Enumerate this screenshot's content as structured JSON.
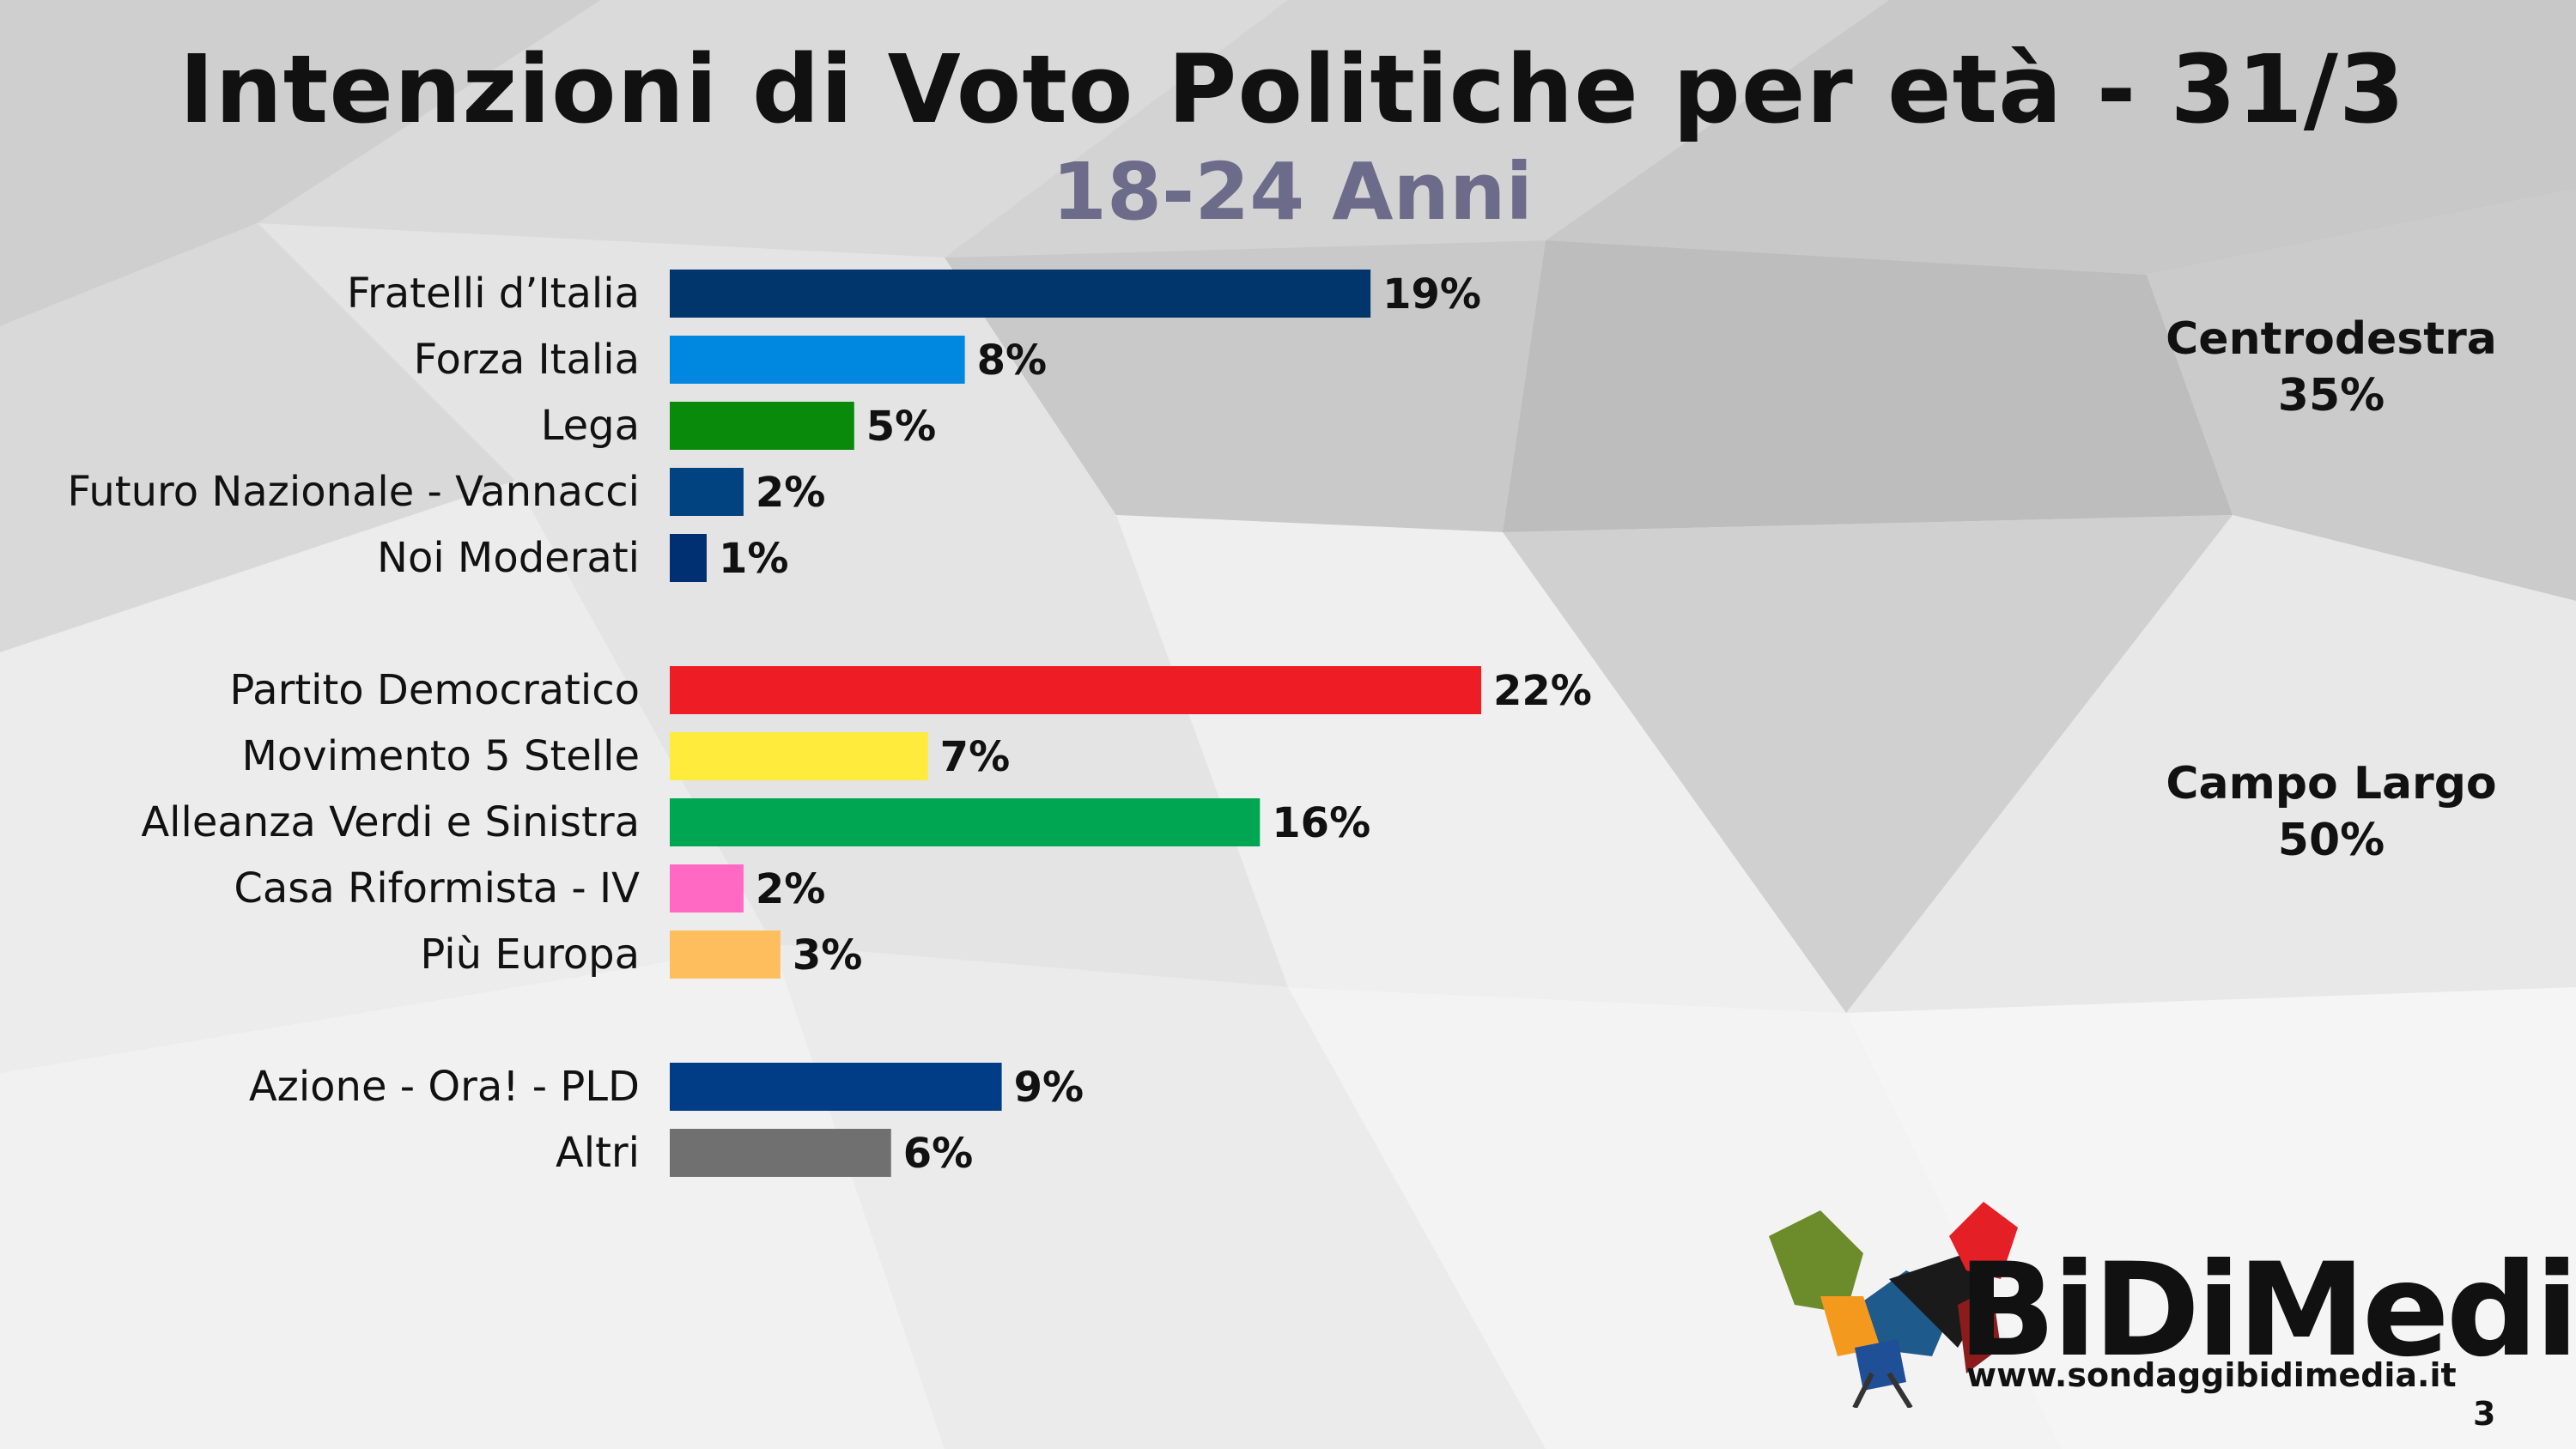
{
  "header": {
    "title": "Intenzioni di Voto Politiche per età  - 31/3",
    "subtitle": "18-24 Anni"
  },
  "chart_data": {
    "type": "bar",
    "orientation": "horizontal",
    "title": "Intenzioni di Voto Politiche per età  - 31/3",
    "subtitle": "18-24 Anni",
    "value_suffix": "%",
    "xlim": [
      0,
      22
    ],
    "categories": [
      "Fratelli d’Italia",
      "Forza Italia",
      "Lega",
      "Futuro Nazionale - Vannacci",
      "Noi Moderati",
      "Partito Democratico",
      "Movimento 5 Stelle",
      "Alleanza Verdi e Sinistra",
      "Casa Riformista - IV",
      "Più Europa",
      "Azione - Ora! - PLD",
      "Altri"
    ],
    "values": [
      19,
      8,
      5,
      2,
      1,
      22,
      7,
      16,
      2,
      3,
      9,
      6
    ],
    "value_labels": [
      "19%",
      "8%",
      "5%",
      "2%",
      "1%",
      "22%",
      "7%",
      "16%",
      "2%",
      "3%",
      "9%",
      "6%"
    ],
    "colors": [
      "#00366c",
      "#0087e0",
      "#0a8a0a",
      "#004380",
      "#002f72",
      "#ee1c25",
      "#ffeb3b",
      "#00a651",
      "#ff69c4",
      "#ffbe5e",
      "#003d86",
      "#707070"
    ],
    "groups": [
      {
        "label": "Centrodestra",
        "value": "35%",
        "members": [
          0,
          1,
          2,
          3,
          4
        ]
      },
      {
        "label": "Campo Largo",
        "value": "50%",
        "members": [
          5,
          6,
          7,
          8,
          9
        ]
      },
      {
        "label": "",
        "value": "",
        "members": [
          10,
          11
        ]
      }
    ]
  },
  "footer": {
    "brand": "BiDiMedia",
    "site": "www.sondaggibidimedia.it",
    "page_number": "3"
  }
}
